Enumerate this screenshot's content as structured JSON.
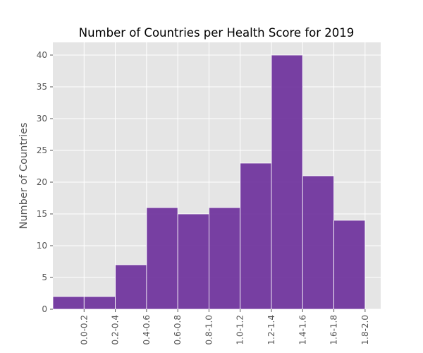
{
  "chart_data": {
    "type": "bar",
    "title": "Number of Countries per Health Score for 2019",
    "xlabel": "",
    "ylabel": "Number of Countries",
    "categories": [
      "0.0-0.2",
      "0.2-0.4",
      "0.4-0.6",
      "0.6-0.8",
      "0.8-1.0",
      "1.0-1.2",
      "1.2-1.4",
      "1.4-1.6",
      "1.6-1.8",
      "1.8-2.0"
    ],
    "bin_edges": [
      0.0,
      0.2,
      0.4,
      0.6,
      0.8,
      1.0,
      1.2,
      1.4,
      1.6,
      1.8
    ],
    "values": [
      2,
      2,
      7,
      16,
      15,
      16,
      23,
      40,
      21,
      14
    ],
    "bar_width": 0.2,
    "bar_align": "left-edge-offset",
    "xlim": [
      -0.1,
      2.0
    ],
    "ylim": [
      0,
      42
    ],
    "yticks": [
      0,
      5,
      10,
      15,
      20,
      25,
      30,
      35,
      40
    ],
    "grid": true,
    "legend": "none",
    "colors": {
      "bar": "#6a2c9a",
      "plot_background": "#e5e5e5",
      "grid": "#ffffff",
      "tick_text": "#555555"
    }
  }
}
